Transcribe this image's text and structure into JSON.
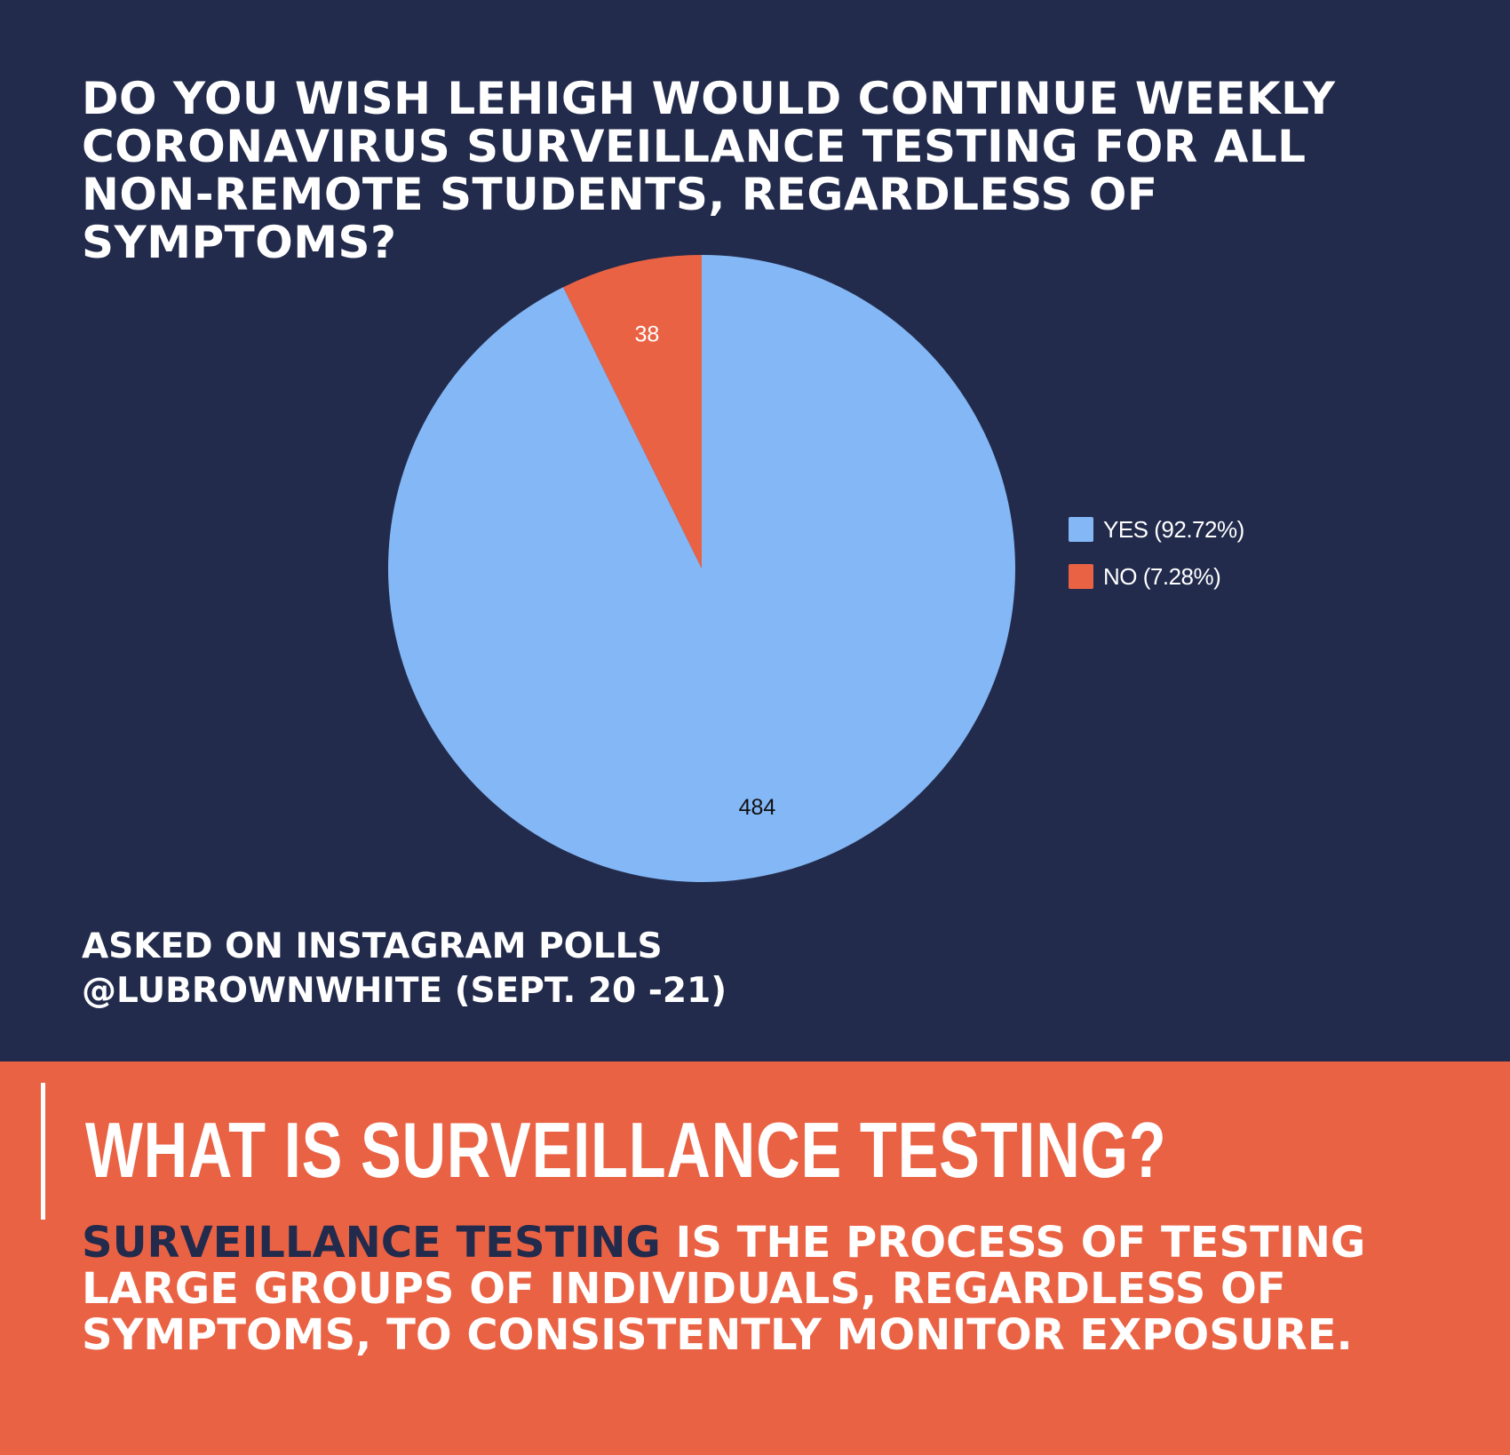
{
  "question": "DO YOU WISH LEHIGH WOULD CONTINUE WEEKLY CORONAVIRUS SURVEILLANCE TESTING FOR ALL NON-REMOTE STUDENTS, REGARDLESS OF SYMPTOMS?",
  "chart_data": {
    "type": "pie",
    "slices": [
      {
        "label": "YES (92.72%)",
        "value": 484,
        "color": "#84b7f5"
      },
      {
        "label": "NO (7.28%)",
        "value": 38,
        "color": "#ea6244"
      }
    ],
    "legend_position": "right"
  },
  "source": {
    "line1": "ASKED ON INSTAGRAM POLLS",
    "line2": "@LUBROWNWHITE (SEPT. 20 -21)"
  },
  "explainer": {
    "heading": "WHAT IS SURVEILLANCE TESTING?",
    "term": "SURVEILLANCE TESTING",
    "definition": " IS THE PROCESS OF TESTING LARGE GROUPS OF INDIVIDUALS, REGARDLESS OF SYMPTOMS, TO CONSISTENTLY MONITOR EXPOSURE."
  },
  "colors": {
    "navy": "#222b4c",
    "orange": "#ea6244",
    "light_blue": "#84b7f5"
  }
}
